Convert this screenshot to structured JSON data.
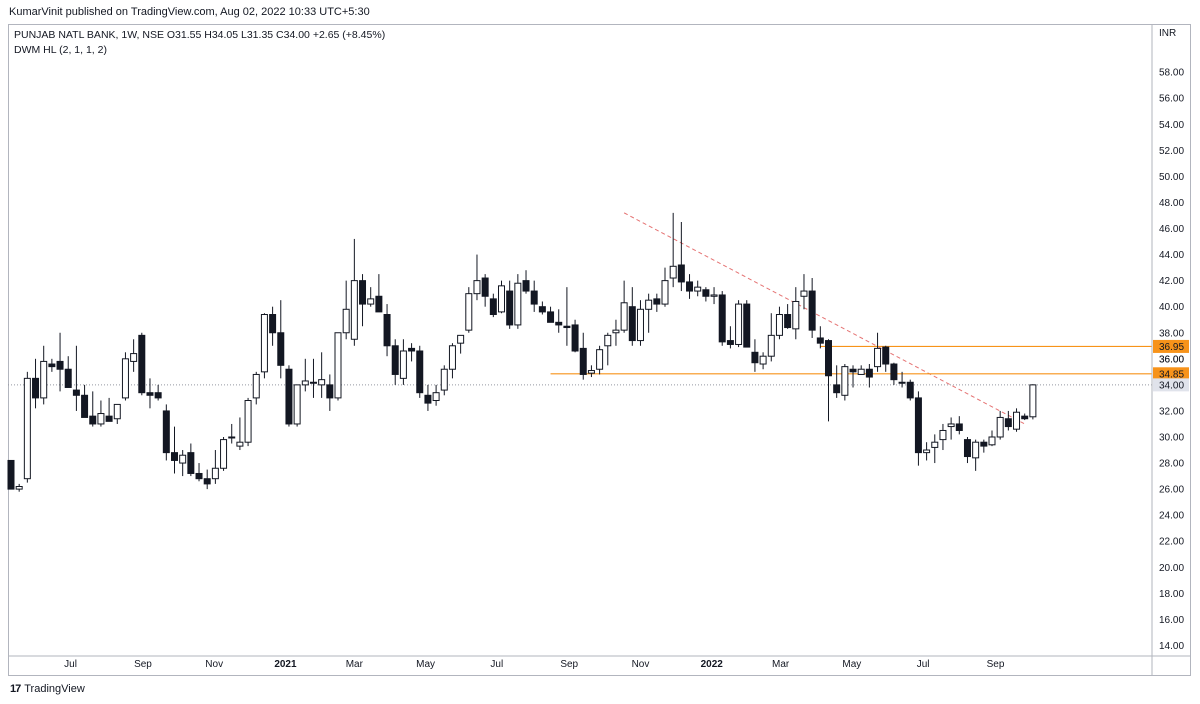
{
  "header": {
    "published": "KumarVinit published on TradingView.com, Aug 02, 2022 10:33 UTC+5:30"
  },
  "legend": {
    "symbol_line": "PUNJAB NATL BANK, 1W, NSE  O31.55  H34.05  L31.35  C34.00  +2.65 (+8.45%)",
    "indicator_line": "DWM HL (2, 1, 1, 2)"
  },
  "footer": {
    "brand_logo": "17",
    "brand": "TradingView"
  },
  "colors": {
    "up_body": "#ffffff",
    "down_body": "#131722",
    "wick": "#131722",
    "level_line": "#f7931a",
    "trendline": "#e57373",
    "axis_text": "#131722",
    "border": "#b2b5be"
  },
  "chart_data": {
    "type": "candlestick",
    "interval": "1W",
    "y_unit": "INR",
    "ylim": [
      12,
      60
    ],
    "y_ticks": [
      14,
      16,
      18,
      20,
      22,
      24,
      26,
      28,
      30,
      32,
      34,
      36,
      38,
      40,
      42,
      44,
      46,
      48,
      50,
      52,
      54,
      56,
      58
    ],
    "x_ticks": [
      {
        "label": "Jul",
        "date": "2020-07-01"
      },
      {
        "label": "Sep",
        "date": "2020-09-01"
      },
      {
        "label": "Nov",
        "date": "2020-11-01"
      },
      {
        "label": "2021",
        "date": "2021-01-01",
        "bold": true
      },
      {
        "label": "Mar",
        "date": "2021-03-01"
      },
      {
        "label": "May",
        "date": "2021-05-01"
      },
      {
        "label": "Jul",
        "date": "2021-07-01"
      },
      {
        "label": "Sep",
        "date": "2021-09-01"
      },
      {
        "label": "Nov",
        "date": "2021-11-01"
      },
      {
        "label": "2022",
        "date": "2022-01-01",
        "bold": true
      },
      {
        "label": "Mar",
        "date": "2022-03-01"
      },
      {
        "label": "May",
        "date": "2022-05-01"
      },
      {
        "label": "Jul",
        "date": "2022-07-01"
      },
      {
        "label": "Sep",
        "date": "2022-09-01"
      }
    ],
    "levels": [
      {
        "value": 36.95,
        "label": "36.95",
        "from_date": "2022-04-04"
      },
      {
        "value": 34.85,
        "label": "34.85",
        "from_date": "2021-08-16"
      }
    ],
    "last_price": {
      "value": 34.0,
      "label": "34.00"
    },
    "trendline": {
      "start": {
        "date": "2021-10-18",
        "price": 47.2
      },
      "end": {
        "date": "2022-09-26",
        "price": 31.0
      }
    },
    "first_week": "2020-05-11",
    "candles": [
      [
        28.2,
        28.2,
        26.0,
        26.0
      ],
      [
        26.0,
        26.4,
        25.8,
        26.2
      ],
      [
        26.8,
        35.0,
        26.5,
        34.5
      ],
      [
        34.5,
        36.0,
        32.2,
        33.0
      ],
      [
        33.0,
        37.0,
        32.5,
        35.8
      ],
      [
        35.6,
        36.0,
        35.0,
        35.4
      ],
      [
        35.8,
        38.0,
        33.5,
        35.2
      ],
      [
        35.2,
        36.2,
        34.0,
        33.8
      ],
      [
        33.6,
        37.0,
        32.0,
        33.2
      ],
      [
        33.2,
        34.0,
        31.5,
        31.5
      ],
      [
        31.6,
        33.5,
        30.8,
        31.0
      ],
      [
        31.0,
        32.8,
        30.8,
        31.8
      ],
      [
        31.6,
        33.0,
        31.2,
        31.2
      ],
      [
        31.4,
        32.5,
        31.0,
        32.5
      ],
      [
        33.0,
        36.5,
        32.8,
        36.0
      ],
      [
        35.8,
        37.5,
        35.0,
        36.4
      ],
      [
        37.8,
        38.0,
        33.2,
        33.4
      ],
      [
        33.4,
        34.5,
        32.2,
        33.2
      ],
      [
        33.4,
        34.0,
        32.8,
        33.0
      ],
      [
        32.0,
        32.5,
        28.2,
        28.8
      ],
      [
        28.8,
        30.8,
        27.2,
        28.2
      ],
      [
        28.0,
        29.0,
        27.0,
        28.6
      ],
      [
        28.8,
        29.5,
        27.0,
        27.2
      ],
      [
        27.2,
        28.0,
        26.6,
        26.8
      ],
      [
        26.8,
        27.5,
        26.0,
        26.4
      ],
      [
        26.8,
        29.0,
        26.4,
        27.6
      ],
      [
        27.6,
        30.0,
        27.4,
        29.8
      ],
      [
        30.0,
        31.0,
        29.5,
        30.0
      ],
      [
        29.3,
        31.5,
        29.0,
        29.6
      ],
      [
        29.6,
        33.0,
        29.3,
        32.8
      ],
      [
        33.0,
        35.0,
        32.5,
        34.8
      ],
      [
        35.0,
        39.5,
        34.5,
        39.4
      ],
      [
        39.4,
        40.0,
        37.0,
        38.0
      ],
      [
        38.0,
        40.5,
        34.5,
        35.5
      ],
      [
        35.2,
        35.5,
        30.8,
        31.0
      ],
      [
        31.0,
        34.0,
        30.8,
        34.0
      ],
      [
        34.0,
        36.0,
        33.5,
        34.3
      ],
      [
        34.2,
        36.0,
        33.0,
        34.2
      ],
      [
        34.0,
        36.5,
        33.0,
        34.4
      ],
      [
        34.0,
        34.8,
        32.0,
        33.0
      ],
      [
        33.0,
        38.0,
        32.8,
        38.0
      ],
      [
        38.0,
        42.0,
        37.5,
        39.8
      ],
      [
        37.5,
        45.2,
        37.0,
        42.0
      ],
      [
        42.0,
        42.5,
        38.5,
        40.2
      ],
      [
        40.2,
        41.5,
        40.0,
        40.6
      ],
      [
        40.8,
        42.5,
        40.0,
        39.6
      ],
      [
        39.4,
        40.2,
        36.2,
        37.0
      ],
      [
        37.0,
        37.5,
        34.0,
        34.8
      ],
      [
        34.5,
        37.5,
        34.0,
        36.6
      ],
      [
        36.8,
        37.2,
        35.8,
        36.6
      ],
      [
        36.6,
        37.0,
        33.0,
        33.4
      ],
      [
        33.2,
        34.0,
        32.0,
        32.6
      ],
      [
        32.8,
        34.0,
        32.4,
        33.4
      ],
      [
        33.6,
        35.5,
        33.2,
        35.2
      ],
      [
        35.2,
        37.2,
        34.5,
        37.0
      ],
      [
        37.2,
        37.8,
        36.4,
        37.8
      ],
      [
        38.2,
        41.5,
        38.0,
        41.0
      ],
      [
        41.0,
        44.0,
        40.5,
        42.0
      ],
      [
        42.2,
        42.5,
        40.0,
        40.8
      ],
      [
        40.6,
        41.0,
        39.2,
        39.4
      ],
      [
        39.6,
        42.0,
        39.5,
        41.6
      ],
      [
        41.2,
        42.0,
        38.3,
        38.6
      ],
      [
        38.6,
        42.5,
        38.3,
        41.8
      ],
      [
        42.0,
        42.8,
        41.0,
        41.2
      ],
      [
        41.2,
        42.0,
        39.6,
        40.2
      ],
      [
        40.0,
        40.4,
        39.4,
        39.6
      ],
      [
        39.6,
        40.0,
        39.0,
        38.8
      ],
      [
        38.8,
        39.8,
        38.0,
        38.6
      ],
      [
        38.5,
        41.5,
        37.0,
        38.4
      ],
      [
        38.6,
        39.0,
        36.5,
        36.6
      ],
      [
        36.8,
        38.0,
        34.4,
        34.8
      ],
      [
        34.9,
        35.5,
        34.6,
        35.1
      ],
      [
        35.2,
        37.0,
        34.8,
        36.7
      ],
      [
        37.0,
        38.0,
        35.5,
        37.8
      ],
      [
        38.0,
        39.0,
        37.0,
        38.2
      ],
      [
        38.2,
        42.0,
        38.0,
        40.3
      ],
      [
        40.0,
        41.5,
        37.0,
        37.4
      ],
      [
        37.4,
        40.5,
        37.0,
        39.8
      ],
      [
        39.8,
        41.0,
        38.0,
        40.5
      ],
      [
        40.6,
        41.0,
        39.6,
        40.2
      ],
      [
        40.2,
        43.0,
        40.0,
        42.0
      ],
      [
        42.2,
        47.2,
        41.5,
        43.1
      ],
      [
        43.2,
        46.5,
        41.2,
        41.9
      ],
      [
        41.9,
        42.5,
        40.6,
        41.2
      ],
      [
        41.2,
        42.0,
        40.8,
        41.5
      ],
      [
        41.3,
        41.5,
        40.4,
        40.8
      ],
      [
        40.8,
        41.5,
        40.2,
        40.9
      ],
      [
        40.9,
        41.2,
        37.0,
        37.3
      ],
      [
        37.4,
        38.5,
        36.8,
        37.1
      ],
      [
        37.1,
        40.5,
        36.9,
        40.2
      ],
      [
        40.2,
        40.5,
        37.1,
        36.9
      ],
      [
        36.5,
        37.5,
        35.0,
        35.7
      ],
      [
        35.6,
        36.5,
        35.2,
        36.2
      ],
      [
        36.2,
        39.5,
        35.8,
        37.8
      ],
      [
        37.8,
        40.0,
        37.5,
        39.4
      ],
      [
        39.4,
        40.2,
        38.3,
        38.4
      ],
      [
        38.3,
        41.5,
        37.5,
        40.4
      ],
      [
        40.8,
        42.5,
        39.8,
        41.2
      ],
      [
        41.2,
        42.2,
        37.6,
        38.2
      ],
      [
        37.6,
        38.5,
        36.8,
        37.2
      ],
      [
        37.4,
        37.5,
        31.2,
        34.7
      ],
      [
        34.0,
        35.5,
        33.0,
        33.4
      ],
      [
        33.2,
        35.6,
        32.8,
        35.4
      ],
      [
        35.2,
        35.5,
        33.8,
        35.0
      ],
      [
        34.8,
        35.5,
        34.8,
        35.2
      ],
      [
        35.2,
        35.6,
        33.8,
        34.6
      ],
      [
        35.4,
        38.0,
        35.0,
        36.8
      ],
      [
        36.9,
        37.0,
        35.0,
        35.6
      ],
      [
        35.6,
        35.7,
        34.0,
        34.4
      ],
      [
        34.2,
        35.0,
        33.8,
        34.2
      ],
      [
        34.2,
        34.4,
        32.8,
        33.0
      ],
      [
        33.0,
        33.5,
        27.8,
        28.8
      ],
      [
        28.8,
        29.6,
        28.2,
        29.0
      ],
      [
        29.2,
        30.2,
        28.0,
        29.6
      ],
      [
        29.8,
        31.0,
        29.0,
        30.5
      ],
      [
        30.8,
        31.5,
        29.8,
        31.0
      ],
      [
        31.0,
        31.6,
        30.2,
        30.5
      ],
      [
        29.8,
        30.0,
        28.0,
        28.5
      ],
      [
        28.4,
        29.8,
        27.4,
        29.6
      ],
      [
        29.6,
        29.8,
        28.8,
        29.3
      ],
      [
        29.4,
        30.5,
        29.3,
        30.0
      ],
      [
        30.0,
        32.0,
        29.8,
        31.5
      ],
      [
        31.4,
        32.0,
        30.5,
        30.8
      ],
      [
        30.6,
        32.2,
        30.4,
        31.9
      ],
      [
        31.6,
        31.8,
        31.3,
        31.4
      ],
      [
        31.55,
        34.05,
        31.35,
        34.0
      ]
    ]
  }
}
